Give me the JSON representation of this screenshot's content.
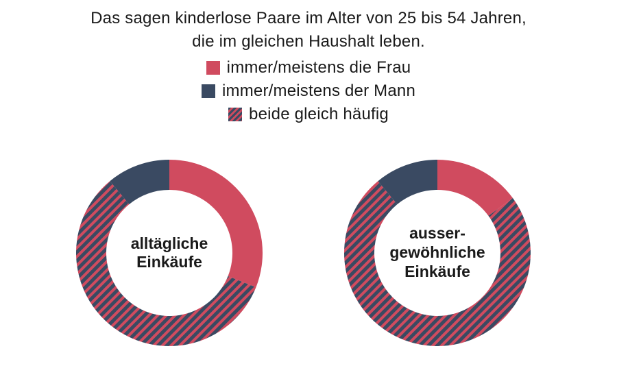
{
  "title_lines": [
    "Das sagen kinderlose Paare im Alter von 25 bis 54 Jahren,",
    "die im gleichen Haushalt leben."
  ],
  "legend": [
    {
      "label": "immer/meistens die Frau",
      "color": "#d04b5f",
      "pattern": "solid"
    },
    {
      "label": "immer/meistens der Mann",
      "color": "#3a4a62",
      "pattern": "solid"
    },
    {
      "label": "beide gleich häufig",
      "color": "#d04b5f",
      "pattern": "stripes"
    }
  ],
  "colors": {
    "woman": "#d04b5f",
    "man": "#3a4a62",
    "stripe_a": "#d04b5f",
    "stripe_b": "#3a4a62"
  },
  "chart_data": [
    {
      "type": "pie",
      "donut": true,
      "center_label": [
        "alltägliche",
        "Einkäufe"
      ],
      "categories": [
        "immer/meistens die Frau",
        "beide gleich häufig",
        "immer/meistens der Mann"
      ],
      "values": [
        31,
        58,
        11
      ]
    },
    {
      "type": "pie",
      "donut": true,
      "center_label": [
        "ausser-",
        "gewöhnliche",
        "Einkäufe"
      ],
      "categories": [
        "immer/meistens die Frau",
        "beide gleich häufig",
        "immer/meistens der Mann"
      ],
      "values": [
        15,
        74,
        11
      ]
    }
  ]
}
